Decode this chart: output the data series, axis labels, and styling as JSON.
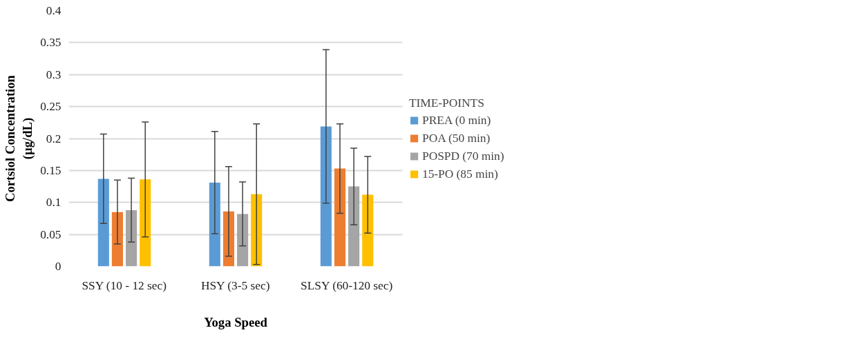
{
  "chart_data": {
    "type": "bar",
    "xlabel": "Yoga Speed",
    "ylabel": "Cortsiol Concentration\n(µg/dL)",
    "legend_title": "TIME-POINTS",
    "categories": [
      "SSY (10 - 12 sec)",
      "HSY (3-5 sec)",
      "SLSY (60-120 sec)"
    ],
    "series": [
      {
        "name": "PREA (0 min)",
        "color": "#5b9bd5",
        "values": [
          0.137,
          0.131,
          0.219
        ],
        "errors": [
          0.07,
          0.08,
          0.12
        ]
      },
      {
        "name": "POA (50 min)",
        "color": "#ed7d31",
        "values": [
          0.085,
          0.086,
          0.153
        ],
        "errors": [
          0.05,
          0.07,
          0.07
        ]
      },
      {
        "name": "POSPD (70 min)",
        "color": "#a5a5a5",
        "values": [
          0.088,
          0.082,
          0.125
        ],
        "errors": [
          0.05,
          0.05,
          0.06
        ]
      },
      {
        "name": "15-PO (85 min)",
        "color": "#ffc000",
        "values": [
          0.136,
          0.113,
          0.112
        ],
        "errors": [
          0.09,
          0.11,
          0.06
        ]
      }
    ],
    "ylim": [
      0,
      0.4
    ],
    "yticks": [
      0,
      0.05,
      0.1,
      0.15,
      0.2,
      0.25,
      0.3,
      0.35,
      0.4
    ],
    "grid": "y",
    "legend": "right"
  }
}
